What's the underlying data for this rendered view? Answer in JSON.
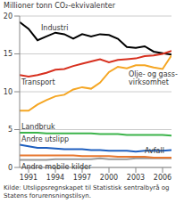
{
  "chart_data": {
    "type": "line",
    "title": "Millioner tonn CO₂-ekvivalenter",
    "source": "Kilde: Utslippsregnskapet til Statistisk sentralbyrå og Statens forurensningstilsyn.",
    "x": [
      1990,
      1991,
      1992,
      1993,
      1994,
      1995,
      1996,
      1997,
      1998,
      1999,
      2000,
      2001,
      2002,
      2003,
      2004,
      2005,
      2006,
      2007
    ],
    "xlim": [
      1990,
      2007
    ],
    "xticks": [
      1991,
      1994,
      1997,
      2000,
      2003,
      2006
    ],
    "ylim": [
      0,
      20
    ],
    "yticks": [
      0,
      5,
      10,
      15,
      20
    ],
    "grid": true,
    "series": [
      {
        "name": "Industri",
        "color": "#000000",
        "values": [
          19.2,
          18.3,
          16.8,
          17.3,
          17.8,
          17.6,
          17.0,
          17.6,
          17.3,
          17.6,
          17.5,
          17.0,
          15.9,
          15.8,
          16.0,
          15.3,
          15.1,
          14.9
        ]
      },
      {
        "name": "Transport",
        "color": "#d7301f",
        "values": [
          12.2,
          12.0,
          12.2,
          12.5,
          12.9,
          13.0,
          13.4,
          13.7,
          14.0,
          14.3,
          13.9,
          14.2,
          14.3,
          14.4,
          14.7,
          14.8,
          15.0,
          15.4
        ]
      },
      {
        "name": "Olje- og gass-\nvirksomhet",
        "color": "#f5a623",
        "values": [
          7.5,
          7.5,
          8.3,
          8.9,
          9.4,
          9.6,
          10.3,
          10.6,
          10.4,
          11.2,
          12.6,
          13.3,
          13.1,
          13.5,
          13.5,
          13.2,
          13.0,
          14.8
        ]
      },
      {
        "name": "Landbruk",
        "color": "#3cb44b",
        "values": [
          4.6,
          4.6,
          4.6,
          4.5,
          4.5,
          4.5,
          4.5,
          4.5,
          4.5,
          4.4,
          4.4,
          4.4,
          4.3,
          4.3,
          4.3,
          4.3,
          4.3,
          4.2
        ]
      },
      {
        "name": "Andre utslipp",
        "color": "#1f5fbf",
        "values": [
          3.0,
          2.8,
          2.6,
          2.6,
          2.5,
          2.4,
          2.4,
          2.4,
          2.3,
          2.3,
          2.2,
          2.2,
          2.2,
          2.1,
          2.2,
          2.2,
          2.2,
          2.3
        ]
      },
      {
        "name": "Andre mobile kilder",
        "color": "#9a9a9a",
        "values": [
          1.0,
          1.0,
          1.0,
          1.0,
          1.1,
          1.1,
          1.1,
          1.1,
          1.1,
          1.2,
          1.1,
          1.1,
          1.1,
          1.2,
          1.2,
          1.2,
          1.2,
          1.2
        ]
      },
      {
        "name": "Avfall",
        "color": "#e8772e",
        "values": [
          1.6,
          1.6,
          1.6,
          1.6,
          1.6,
          1.6,
          1.6,
          1.5,
          1.5,
          1.5,
          1.5,
          1.4,
          1.4,
          1.4,
          1.4,
          1.3,
          1.3,
          1.3
        ]
      }
    ]
  }
}
